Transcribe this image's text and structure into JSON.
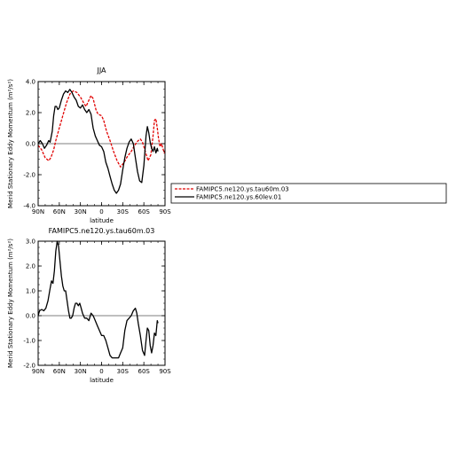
{
  "chart_data": [
    {
      "type": "line",
      "title": "JJA",
      "xlabel": "latitude",
      "ylabel": "Merid Stationary Eddy Momentum (m²/s²)",
      "xticklabels": [
        "90N",
        "60N",
        "30N",
        "0",
        "30S",
        "60S",
        "90S"
      ],
      "yticklabels": [
        "4.0",
        "2.0",
        "0.0",
        "-2.0",
        "-4.0"
      ],
      "xlim": [
        90,
        -90
      ],
      "ylim": [
        -4,
        4
      ],
      "legend_position": "right",
      "series": [
        {
          "name": "FAMIPC5.ne120.ys.tau60m.03",
          "color": "#e00000",
          "dashed": true,
          "points": [
            [
              90,
              -0.1
            ],
            [
              85,
              -0.4
            ],
            [
              80,
              -0.9
            ],
            [
              75,
              -1.1
            ],
            [
              72,
              -0.9
            ],
            [
              68,
              -0.4
            ],
            [
              65,
              0.2
            ],
            [
              60,
              1.0
            ],
            [
              55,
              1.8
            ],
            [
              50,
              2.6
            ],
            [
              45,
              3.2
            ],
            [
              40,
              3.4
            ],
            [
              35,
              3.3
            ],
            [
              30,
              3.0
            ],
            [
              25,
              2.6
            ],
            [
              22,
              2.4
            ],
            [
              18,
              2.8
            ],
            [
              15,
              3.1
            ],
            [
              12,
              2.9
            ],
            [
              8,
              2.2
            ],
            [
              5,
              1.9
            ],
            [
              0,
              1.8
            ],
            [
              -3,
              1.5
            ],
            [
              -7,
              0.8
            ],
            [
              -12,
              0.2
            ],
            [
              -17,
              -0.5
            ],
            [
              -22,
              -1.1
            ],
            [
              -27,
              -1.5
            ],
            [
              -32,
              -1.2
            ],
            [
              -37,
              -0.8
            ],
            [
              -42,
              -0.5
            ],
            [
              -47,
              -0.1
            ],
            [
              -52,
              0.2
            ],
            [
              -55,
              0.3
            ],
            [
              -58,
              0.1
            ],
            [
              -62,
              -0.5
            ],
            [
              -66,
              -1.1
            ],
            [
              -70,
              -0.7
            ],
            [
              -73,
              0.5
            ],
            [
              -75,
              1.5
            ],
            [
              -77,
              1.6
            ],
            [
              -79,
              1.0
            ],
            [
              -81,
              0.3
            ],
            [
              -83,
              -0.2
            ],
            [
              -85,
              0.0
            ],
            [
              -87,
              -0.3
            ],
            [
              -89,
              -0.6
            ],
            [
              -90,
              -0.4
            ]
          ]
        },
        {
          "name": "FAMIPC5.ne120.ys.60lev.01",
          "color": "#000000",
          "dashed": false,
          "points": [
            [
              90,
              0.0
            ],
            [
              87,
              0.2
            ],
            [
              84,
              0.0
            ],
            [
              81,
              -0.3
            ],
            [
              78,
              -0.1
            ],
            [
              75,
              0.2
            ],
            [
              73,
              0.1
            ],
            [
              70,
              0.8
            ],
            [
              68,
              1.8
            ],
            [
              66,
              2.4
            ],
            [
              64,
              2.4
            ],
            [
              62,
              2.2
            ],
            [
              60,
              2.3
            ],
            [
              57,
              2.8
            ],
            [
              54,
              3.2
            ],
            [
              51,
              3.4
            ],
            [
              48,
              3.3
            ],
            [
              45,
              3.5
            ],
            [
              42,
              3.3
            ],
            [
              39,
              3.0
            ],
            [
              36,
              2.8
            ],
            [
              33,
              2.4
            ],
            [
              30,
              2.3
            ],
            [
              27,
              2.5
            ],
            [
              24,
              2.2
            ],
            [
              21,
              2.0
            ],
            [
              18,
              2.2
            ],
            [
              15,
              1.9
            ],
            [
              12,
              1.0
            ],
            [
              9,
              0.5
            ],
            [
              6,
              0.2
            ],
            [
              3,
              -0.1
            ],
            [
              0,
              -0.2
            ],
            [
              -3,
              -0.5
            ],
            [
              -6,
              -1.2
            ],
            [
              -9,
              -1.6
            ],
            [
              -12,
              -2.1
            ],
            [
              -15,
              -2.6
            ],
            [
              -18,
              -3.0
            ],
            [
              -21,
              -3.2
            ],
            [
              -24,
              -3.0
            ],
            [
              -27,
              -2.6
            ],
            [
              -30,
              -1.7
            ],
            [
              -33,
              -0.9
            ],
            [
              -36,
              -0.3
            ],
            [
              -39,
              0.1
            ],
            [
              -42,
              0.3
            ],
            [
              -45,
              0.0
            ],
            [
              -48,
              -0.9
            ],
            [
              -51,
              -1.8
            ],
            [
              -54,
              -2.4
            ],
            [
              -57,
              -2.5
            ],
            [
              -60,
              -1.4
            ],
            [
              -63,
              0.5
            ],
            [
              -65,
              1.1
            ],
            [
              -67,
              0.7
            ],
            [
              -69,
              0.1
            ],
            [
              -71,
              -0.3
            ],
            [
              -73,
              -0.5
            ],
            [
              -75,
              -0.2
            ],
            [
              -77,
              -0.6
            ],
            [
              -79,
              -0.3
            ],
            [
              -80,
              -0.5
            ]
          ]
        }
      ]
    },
    {
      "type": "line",
      "title": "FAMIPC5.ne120.ys.tau60m.03",
      "xlabel": "latitude",
      "ylabel": "Merid Stationary Eddy Momentum (m²/s²)",
      "xticklabels": [
        "90N",
        "60N",
        "30N",
        "0",
        "30S",
        "60S",
        "90S"
      ],
      "yticklabels": [
        "3.0",
        "2.0",
        "1.0",
        "0.0",
        "-1.0",
        "-2.0"
      ],
      "xlim": [
        90,
        -90
      ],
      "ylim": [
        -2,
        3
      ],
      "series": [
        {
          "color": "#000000",
          "dashed": false,
          "points": [
            [
              90,
              0.0
            ],
            [
              88,
              0.2
            ],
            [
              85,
              0.25
            ],
            [
              82,
              0.2
            ],
            [
              79,
              0.3
            ],
            [
              76,
              0.6
            ],
            [
              73,
              1.1
            ],
            [
              71,
              1.4
            ],
            [
              69,
              1.3
            ],
            [
              67,
              1.8
            ],
            [
              65,
              2.6
            ],
            [
              63,
              3.0
            ],
            [
              61,
              2.8
            ],
            [
              59,
              2.2
            ],
            [
              57,
              1.6
            ],
            [
              55,
              1.2
            ],
            [
              53,
              1.0
            ],
            [
              51,
              1.0
            ],
            [
              49,
              0.6
            ],
            [
              47,
              0.2
            ],
            [
              45,
              -0.1
            ],
            [
              43,
              -0.1
            ],
            [
              41,
              0.0
            ],
            [
              39,
              0.3
            ],
            [
              37,
              0.5
            ],
            [
              35,
              0.5
            ],
            [
              33,
              0.4
            ],
            [
              31,
              0.5
            ],
            [
              29,
              0.3
            ],
            [
              27,
              0.1
            ],
            [
              24,
              -0.1
            ],
            [
              21,
              -0.1
            ],
            [
              18,
              -0.2
            ],
            [
              15,
              0.1
            ],
            [
              12,
              0.0
            ],
            [
              9,
              -0.2
            ],
            [
              6,
              -0.4
            ],
            [
              3,
              -0.6
            ],
            [
              0,
              -0.8
            ],
            [
              -3,
              -0.8
            ],
            [
              -6,
              -1.0
            ],
            [
              -9,
              -1.3
            ],
            [
              -12,
              -1.6
            ],
            [
              -15,
              -1.7
            ],
            [
              -18,
              -1.7
            ],
            [
              -21,
              -1.7
            ],
            [
              -24,
              -1.7
            ],
            [
              -27,
              -1.5
            ],
            [
              -30,
              -1.3
            ],
            [
              -33,
              -0.6
            ],
            [
              -36,
              -0.2
            ],
            [
              -39,
              -0.1
            ],
            [
              -42,
              0.0
            ],
            [
              -45,
              0.2
            ],
            [
              -48,
              0.3
            ],
            [
              -50,
              0.1
            ],
            [
              -52,
              -0.3
            ],
            [
              -55,
              -0.8
            ],
            [
              -58,
              -1.4
            ],
            [
              -61,
              -1.6
            ],
            [
              -63,
              -1.0
            ],
            [
              -65,
              -0.5
            ],
            [
              -67,
              -0.6
            ],
            [
              -69,
              -1.2
            ],
            [
              -71,
              -1.5
            ],
            [
              -73,
              -1.2
            ],
            [
              -75,
              -0.7
            ],
            [
              -77,
              -0.8
            ],
            [
              -79,
              -0.2
            ],
            [
              -80,
              -0.3
            ]
          ]
        }
      ]
    }
  ]
}
